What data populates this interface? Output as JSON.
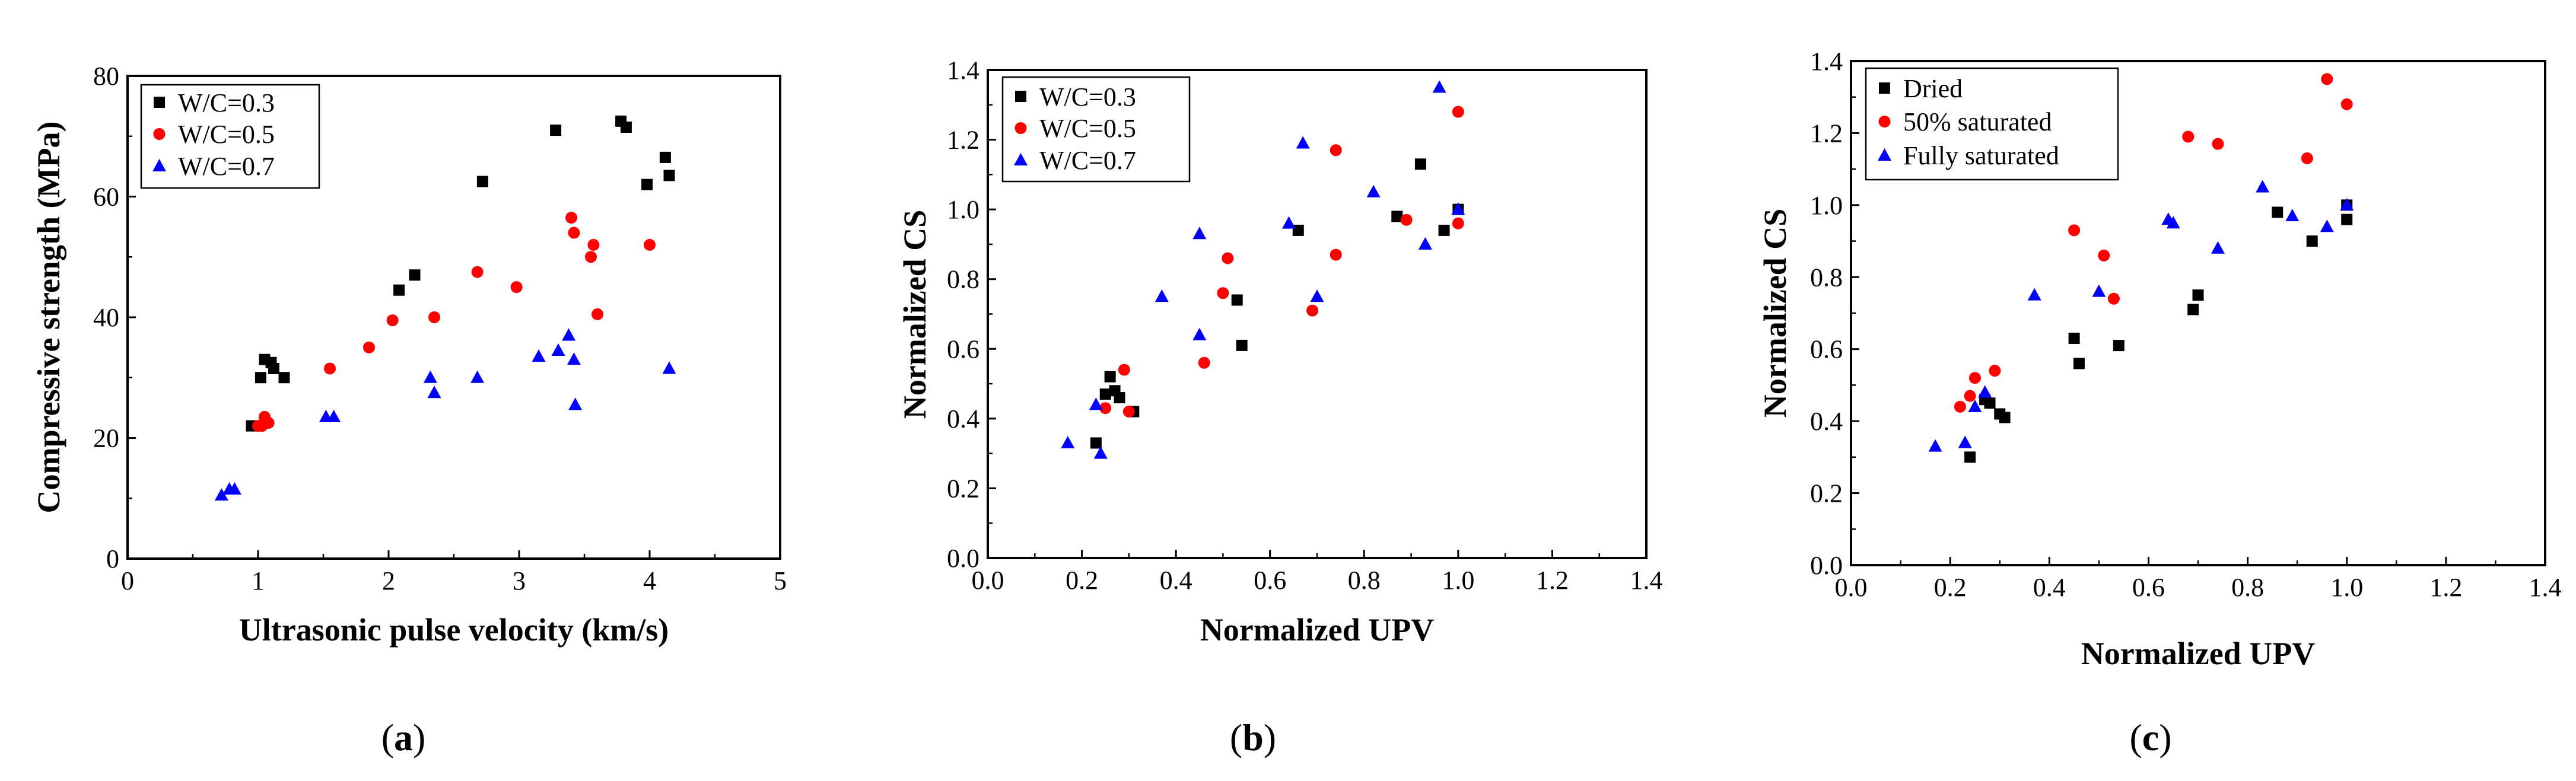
{
  "colors": {
    "black": "#000000",
    "red": "#ff0000",
    "blue": "#0000ff"
  },
  "chart_data": [
    {
      "type": "scatter",
      "panel_label": "a",
      "xlabel": "Ultrasonic pulse velocity (km/s)",
      "ylabel": "Compressive strength (MPa)",
      "xlim": [
        0,
        5
      ],
      "ylim": [
        0,
        80
      ],
      "xticks": [
        "0",
        "1",
        "2",
        "3",
        "4",
        "5"
      ],
      "yticks": [
        "0",
        "20",
        "40",
        "60",
        "80"
      ],
      "legend": {
        "position": "top-left"
      },
      "series": [
        {
          "name": "W/C=0.3",
          "marker": "square",
          "color": "#000000",
          "points": [
            [
              0.95,
              22
            ],
            [
              1.02,
              30
            ],
            [
              1.05,
              33
            ],
            [
              1.1,
              32.5
            ],
            [
              1.12,
              31.5
            ],
            [
              1.2,
              30
            ],
            [
              2.08,
              44.5
            ],
            [
              2.2,
              47
            ],
            [
              2.72,
              62.5
            ],
            [
              3.28,
              71
            ],
            [
              3.78,
              72.5
            ],
            [
              3.82,
              71.5
            ],
            [
              3.98,
              62
            ],
            [
              4.12,
              66.5
            ],
            [
              4.15,
              63.5
            ]
          ]
        },
        {
          "name": "W/C=0.5",
          "marker": "circle",
          "color": "#ff0000",
          "points": [
            [
              1.0,
              22
            ],
            [
              1.03,
              22
            ],
            [
              1.05,
              23.5
            ],
            [
              1.08,
              22.5
            ],
            [
              1.55,
              31.5
            ],
            [
              1.85,
              35
            ],
            [
              2.03,
              39.5
            ],
            [
              2.35,
              40
            ],
            [
              2.68,
              47.5
            ],
            [
              2.98,
              45
            ],
            [
              3.4,
              56.5
            ],
            [
              3.42,
              54
            ],
            [
              3.55,
              50
            ],
            [
              3.57,
              52
            ],
            [
              3.6,
              40.5
            ],
            [
              4.0,
              52
            ]
          ]
        },
        {
          "name": "W/C=0.7",
          "marker": "triangle",
          "color": "#0000ff",
          "points": [
            [
              0.72,
              10.5
            ],
            [
              0.78,
              11.5
            ],
            [
              0.82,
              11.5
            ],
            [
              1.52,
              23.5
            ],
            [
              1.58,
              23.5
            ],
            [
              2.32,
              30
            ],
            [
              2.35,
              27.5
            ],
            [
              2.68,
              30
            ],
            [
              3.15,
              33.5
            ],
            [
              3.3,
              34.5
            ],
            [
              3.38,
              37
            ],
            [
              3.42,
              33
            ],
            [
              3.43,
              25.5
            ],
            [
              4.15,
              31.5
            ]
          ]
        }
      ]
    },
    {
      "type": "scatter",
      "panel_label": "b",
      "xlabel": "Normalized UPV",
      "ylabel": "Normalized  CS",
      "xlim": [
        0,
        1.4
      ],
      "ylim": [
        0,
        1.4
      ],
      "xticks": [
        "0.0",
        "0.2",
        "0.4",
        "0.6",
        "0.8",
        "1.0",
        "1.2",
        "1.4"
      ],
      "yticks": [
        "0.0",
        "0.2",
        "0.4",
        "0.6",
        "0.8",
        "1.0",
        "1.2",
        "1.4"
      ],
      "legend": {
        "position": "top-left"
      },
      "series": [
        {
          "name": "W/C=0.3",
          "marker": "square",
          "color": "#000000",
          "points": [
            [
              0.23,
              0.33
            ],
            [
              0.25,
              0.47
            ],
            [
              0.26,
              0.52
            ],
            [
              0.27,
              0.48
            ],
            [
              0.28,
              0.46
            ],
            [
              0.31,
              0.42
            ],
            [
              0.53,
              0.74
            ],
            [
              0.54,
              0.61
            ],
            [
              0.66,
              0.94
            ],
            [
              0.87,
              0.98
            ],
            [
              0.92,
              1.13
            ],
            [
              0.97,
              0.94
            ],
            [
              1.0,
              1.0
            ]
          ]
        },
        {
          "name": "W/C=0.5",
          "marker": "circle",
          "color": "#ff0000",
          "points": [
            [
              0.25,
              0.43
            ],
            [
              0.29,
              0.54
            ],
            [
              0.3,
              0.42
            ],
            [
              0.46,
              0.56
            ],
            [
              0.5,
              0.76
            ],
            [
              0.51,
              0.86
            ],
            [
              0.69,
              0.71
            ],
            [
              0.74,
              1.17
            ],
            [
              0.74,
              0.87
            ],
            [
              0.89,
              0.97
            ],
            [
              1.0,
              1.28
            ],
            [
              1.0,
              0.96
            ]
          ]
        },
        {
          "name": "W/C=0.7",
          "marker": "triangle",
          "color": "#0000ff",
          "points": [
            [
              0.17,
              0.33
            ],
            [
              0.23,
              0.44
            ],
            [
              0.24,
              0.3
            ],
            [
              0.37,
              0.75
            ],
            [
              0.45,
              0.93
            ],
            [
              0.45,
              0.64
            ],
            [
              0.64,
              0.96
            ],
            [
              0.67,
              1.19
            ],
            [
              0.7,
              0.75
            ],
            [
              0.82,
              1.05
            ],
            [
              0.93,
              0.9
            ],
            [
              0.96,
              1.35
            ],
            [
              1.0,
              1.0
            ]
          ]
        }
      ]
    },
    {
      "type": "scatter",
      "panel_label": "c",
      "xlabel": "Normalized UPV",
      "ylabel": "Normalized CS",
      "xlim": [
        0,
        1.4
      ],
      "ylim": [
        0,
        1.4
      ],
      "xticks": [
        "0.0",
        "0.2",
        "0.4",
        "0.6",
        "0.8",
        "1.0",
        "1.2",
        "1.4"
      ],
      "yticks": [
        "0.0",
        "0.2",
        "0.4",
        "0.6",
        "0.8",
        "1.0",
        "1.2",
        "1.4"
      ],
      "legend": {
        "position": "top-left"
      },
      "series": [
        {
          "name": "Dried",
          "marker": "square",
          "color": "#000000",
          "points": [
            [
              0.24,
              0.3
            ],
            [
              0.27,
              0.46
            ],
            [
              0.28,
              0.45
            ],
            [
              0.3,
              0.42
            ],
            [
              0.31,
              0.41
            ],
            [
              0.45,
              0.63
            ],
            [
              0.46,
              0.56
            ],
            [
              0.54,
              0.61
            ],
            [
              0.69,
              0.71
            ],
            [
              0.7,
              0.75
            ],
            [
              0.86,
              0.98
            ],
            [
              0.93,
              0.9
            ],
            [
              1.0,
              0.96
            ],
            [
              1.0,
              1.0
            ]
          ]
        },
        {
          "name": "50% saturated",
          "marker": "circle",
          "color": "#ff0000",
          "points": [
            [
              0.22,
              0.44
            ],
            [
              0.24,
              0.47
            ],
            [
              0.25,
              0.52
            ],
            [
              0.29,
              0.54
            ],
            [
              0.45,
              0.93
            ],
            [
              0.51,
              0.86
            ],
            [
              0.53,
              0.74
            ],
            [
              0.68,
              1.19
            ],
            [
              0.74,
              1.17
            ],
            [
              0.92,
              1.13
            ],
            [
              0.96,
              1.35
            ],
            [
              1.0,
              1.28
            ]
          ]
        },
        {
          "name": "Fully saturated",
          "marker": "triangle",
          "color": "#0000ff",
          "points": [
            [
              0.17,
              0.33
            ],
            [
              0.23,
              0.34
            ],
            [
              0.25,
              0.44
            ],
            [
              0.27,
              0.48
            ],
            [
              0.37,
              0.75
            ],
            [
              0.5,
              0.76
            ],
            [
              0.64,
              0.96
            ],
            [
              0.65,
              0.95
            ],
            [
              0.74,
              0.88
            ],
            [
              0.83,
              1.05
            ],
            [
              0.89,
              0.97
            ],
            [
              0.96,
              0.94
            ],
            [
              1.0,
              1.0
            ]
          ]
        }
      ]
    }
  ]
}
